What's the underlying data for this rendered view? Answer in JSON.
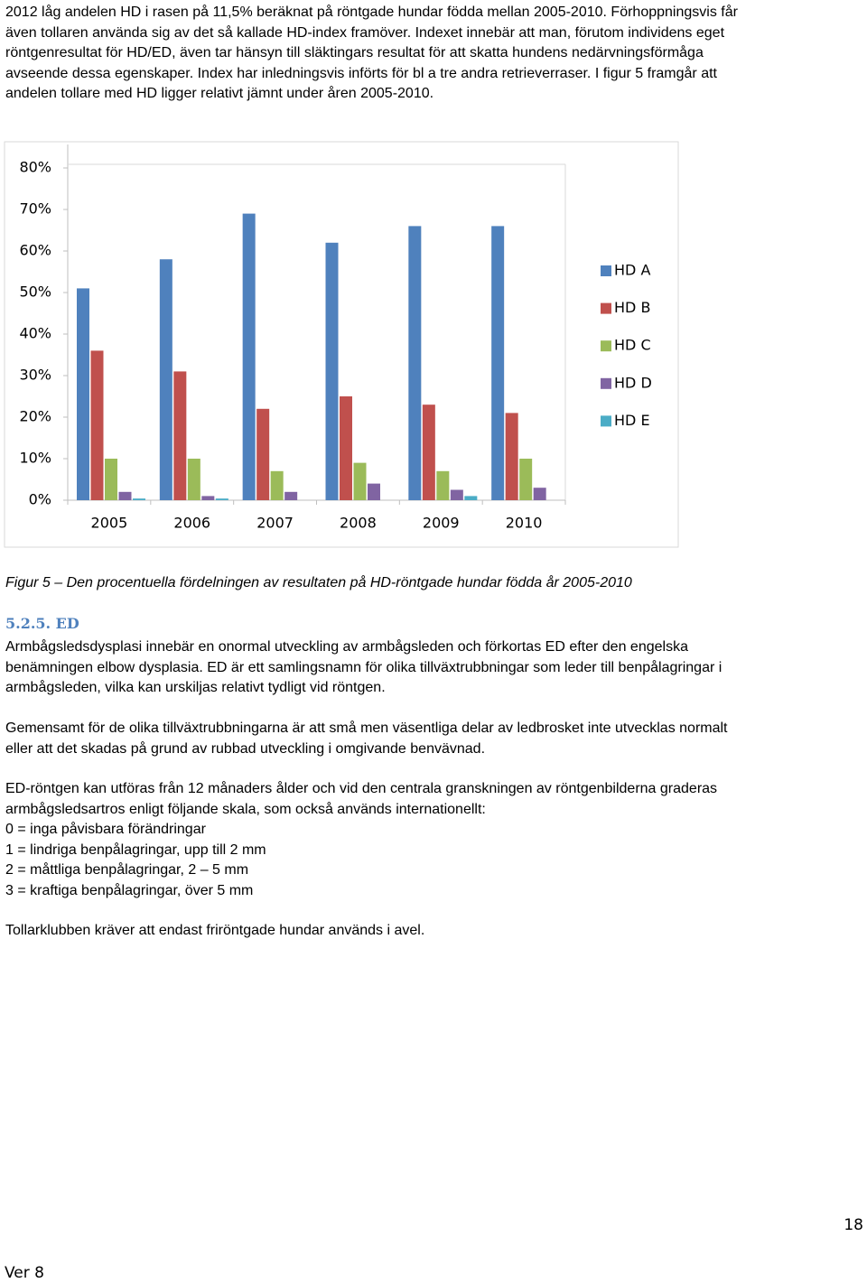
{
  "intro": [
    "2012 låg andelen HD i rasen på 11,5% beräknat på röntgade hundar födda mellan 2005-2010. Förhoppningsvis får",
    "även tollaren använda sig av det så kallade HD-index framöver. Indexet innebär att man, förutom individens eget",
    "röntgenresultat för HD/ED, även tar hänsyn till släktingars resultat för att skatta hundens nedärvningsförmåga",
    "avseende dessa egenskaper. Index har inledningsvis införts för bl a tre andra retrieverraser. I figur 5 framgår att",
    "andelen tollare med HD ligger relativt jämnt under åren 2005-2010."
  ],
  "chart_data": {
    "type": "bar",
    "categories": [
      "2005",
      "2006",
      "2007",
      "2008",
      "2009",
      "2010"
    ],
    "series": [
      {
        "name": "HD A",
        "color": "#4f81bd",
        "values": [
          51,
          58,
          69,
          62,
          66,
          66
        ]
      },
      {
        "name": "HD B",
        "color": "#c0504d",
        "values": [
          36,
          31,
          22,
          25,
          23,
          21
        ]
      },
      {
        "name": "HD C",
        "color": "#9bbb59",
        "values": [
          10,
          10,
          7,
          9,
          7,
          10
        ]
      },
      {
        "name": "HD D",
        "color": "#8064a2",
        "values": [
          2,
          1,
          2,
          4,
          2.5,
          3
        ]
      },
      {
        "name": "HD E",
        "color": "#4bacc6",
        "values": [
          0.4,
          0.4,
          0,
          0,
          1,
          0
        ]
      }
    ],
    "ylim": [
      0,
      80
    ],
    "yticks": [
      {
        "value": 0,
        "label": "0%"
      },
      {
        "value": 10,
        "label": "10%"
      },
      {
        "value": 20,
        "label": "20%"
      },
      {
        "value": 30,
        "label": "30%"
      },
      {
        "value": 40,
        "label": "40%"
      },
      {
        "value": 50,
        "label": "50%"
      },
      {
        "value": 60,
        "label": "60%"
      },
      {
        "value": 70,
        "label": "70%"
      },
      {
        "value": 80,
        "label": "80%"
      }
    ],
    "grid": false,
    "legend": "right"
  },
  "caption": "Figur 5 – Den procentuella fördelningen av resultaten på HD-röntgade hundar födda år 2005-2010",
  "heading": "5.2.5. ED",
  "paragraphs": [
    [
      "Armbågsledsdysplasi innebär en onormal utveckling av armbågsleden och förkortas ED efter den engelska",
      "benämningen elbow dysplasia. ED är ett samlingsnamn för olika tillväxtrubbningar som leder till benpålagringar i",
      "armbågsleden, vilka kan urskiljas relativt tydligt vid röntgen."
    ],
    [
      "Gemensamt för de olika tillväxtrubbningarna är att små men väsentliga delar av ledbrosket inte utvecklas normalt",
      "eller att det skadas på grund av rubbad utveckling i omgivande benvävnad."
    ],
    [
      "ED-röntgen kan utföras från 12 månaders ålder och vid den centrala granskningen av röntgenbilderna graderas",
      "armbågsledsartros enligt följande skala, som också används internationellt:",
      "0 = inga påvisbara förändringar",
      "1 = lindriga benpålagringar, upp till 2 mm",
      "2 = måttliga benpålagringar, 2 – 5 mm",
      "3 = kraftiga benpålagringar, över 5 mm"
    ],
    [
      "Tollarklubben kräver att endast friröntgade hundar används i avel."
    ]
  ],
  "footer": {
    "page_number": "18",
    "version": "Ver 8"
  }
}
